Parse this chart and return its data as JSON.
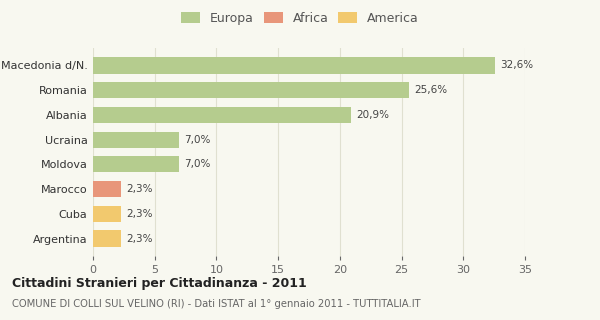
{
  "categories": [
    "Macedonia d/N.",
    "Romania",
    "Albania",
    "Ucraina",
    "Moldova",
    "Marocco",
    "Cuba",
    "Argentina"
  ],
  "values": [
    32.6,
    25.6,
    20.9,
    7.0,
    7.0,
    2.3,
    2.3,
    2.3
  ],
  "labels": [
    "32,6%",
    "25,6%",
    "20,9%",
    "7,0%",
    "7,0%",
    "2,3%",
    "2,3%",
    "2,3%"
  ],
  "colors": [
    "#b5cc8e",
    "#b5cc8e",
    "#b5cc8e",
    "#b5cc8e",
    "#b5cc8e",
    "#e8967a",
    "#f2c96e",
    "#f2c96e"
  ],
  "legend": [
    {
      "label": "Europa",
      "color": "#b5cc8e"
    },
    {
      "label": "Africa",
      "color": "#e8967a"
    },
    {
      "label": "America",
      "color": "#f2c96e"
    }
  ],
  "xlim": [
    0,
    35
  ],
  "xticks": [
    0,
    5,
    10,
    15,
    20,
    25,
    30,
    35
  ],
  "title": "Cittadini Stranieri per Cittadinanza - 2011",
  "subtitle": "COMUNE DI COLLI SUL VELINO (RI) - Dati ISTAT al 1° gennaio 2011 - TUTTITALIA.IT",
  "background_color": "#f8f8f0",
  "grid_color": "#e0e0d0",
  "bar_height": 0.65
}
